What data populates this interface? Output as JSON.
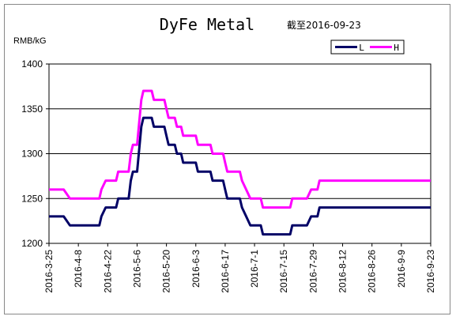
{
  "chart_data": {
    "type": "line",
    "title": "DyFe Metal",
    "subtitle": "截至2016-09-23",
    "ylabel": "RMB/kG",
    "xlabel": "",
    "ylim": [
      1200,
      1400
    ],
    "yticks": [
      1200,
      1250,
      1300,
      1350,
      1400
    ],
    "xlim": [
      "2016-03-25",
      "2016-09-23"
    ],
    "xtick_labels": [
      "2016-3-25",
      "2016-4-8",
      "2016-4-22",
      "2016-5-6",
      "2016-5-20",
      "2016-6-3",
      "2016-6-17",
      "2016-7-1",
      "2016-7-15",
      "2016-7-29",
      "2016-8-12",
      "2016-8-26",
      "2016-9-9",
      "2016-9-23"
    ],
    "grid": "horizontal",
    "legend_position": "top-right",
    "series": [
      {
        "name": "L",
        "color": "#000066",
        "points": [
          [
            "2016-03-25",
            1230
          ],
          [
            "2016-04-01",
            1230
          ],
          [
            "2016-04-04",
            1220
          ],
          [
            "2016-04-08",
            1220
          ],
          [
            "2016-04-18",
            1220
          ],
          [
            "2016-04-19",
            1230
          ],
          [
            "2016-04-21",
            1240
          ],
          [
            "2016-04-26",
            1240
          ],
          [
            "2016-04-27",
            1250
          ],
          [
            "2016-05-02",
            1250
          ],
          [
            "2016-05-03",
            1270
          ],
          [
            "2016-05-04",
            1280
          ],
          [
            "2016-05-06",
            1280
          ],
          [
            "2016-05-08",
            1330
          ],
          [
            "2016-05-09",
            1340
          ],
          [
            "2016-05-13",
            1340
          ],
          [
            "2016-05-14",
            1330
          ],
          [
            "2016-05-19",
            1330
          ],
          [
            "2016-05-20",
            1320
          ],
          [
            "2016-05-21",
            1310
          ],
          [
            "2016-05-24",
            1310
          ],
          [
            "2016-05-25",
            1300
          ],
          [
            "2016-05-27",
            1300
          ],
          [
            "2016-05-28",
            1290
          ],
          [
            "2016-06-03",
            1290
          ],
          [
            "2016-06-04",
            1280
          ],
          [
            "2016-06-10",
            1280
          ],
          [
            "2016-06-11",
            1270
          ],
          [
            "2016-06-16",
            1270
          ],
          [
            "2016-06-17",
            1260
          ],
          [
            "2016-06-18",
            1250
          ],
          [
            "2016-06-24",
            1250
          ],
          [
            "2016-06-25",
            1240
          ],
          [
            "2016-06-27",
            1230
          ],
          [
            "2016-06-29",
            1220
          ],
          [
            "2016-07-04",
            1220
          ],
          [
            "2016-07-05",
            1210
          ],
          [
            "2016-07-18",
            1210
          ],
          [
            "2016-07-19",
            1220
          ],
          [
            "2016-07-26",
            1220
          ],
          [
            "2016-07-28",
            1230
          ],
          [
            "2016-07-31",
            1230
          ],
          [
            "2016-08-01",
            1240
          ],
          [
            "2016-09-23",
            1240
          ]
        ]
      },
      {
        "name": "H",
        "color": "#ff00ff",
        "points": [
          [
            "2016-03-25",
            1260
          ],
          [
            "2016-04-01",
            1260
          ],
          [
            "2016-04-04",
            1250
          ],
          [
            "2016-04-08",
            1250
          ],
          [
            "2016-04-18",
            1250
          ],
          [
            "2016-04-19",
            1260
          ],
          [
            "2016-04-21",
            1270
          ],
          [
            "2016-04-26",
            1270
          ],
          [
            "2016-04-27",
            1280
          ],
          [
            "2016-05-02",
            1280
          ],
          [
            "2016-05-03",
            1300
          ],
          [
            "2016-05-04",
            1310
          ],
          [
            "2016-05-06",
            1310
          ],
          [
            "2016-05-08",
            1360
          ],
          [
            "2016-05-09",
            1370
          ],
          [
            "2016-05-13",
            1370
          ],
          [
            "2016-05-14",
            1360
          ],
          [
            "2016-05-19",
            1360
          ],
          [
            "2016-05-20",
            1350
          ],
          [
            "2016-05-21",
            1340
          ],
          [
            "2016-05-24",
            1340
          ],
          [
            "2016-05-25",
            1330
          ],
          [
            "2016-05-27",
            1330
          ],
          [
            "2016-05-28",
            1320
          ],
          [
            "2016-06-03",
            1320
          ],
          [
            "2016-06-04",
            1310
          ],
          [
            "2016-06-10",
            1310
          ],
          [
            "2016-06-11",
            1300
          ],
          [
            "2016-06-16",
            1300
          ],
          [
            "2016-06-17",
            1290
          ],
          [
            "2016-06-18",
            1280
          ],
          [
            "2016-06-24",
            1280
          ],
          [
            "2016-06-25",
            1270
          ],
          [
            "2016-06-27",
            1260
          ],
          [
            "2016-06-29",
            1250
          ],
          [
            "2016-07-04",
            1250
          ],
          [
            "2016-07-05",
            1240
          ],
          [
            "2016-07-18",
            1240
          ],
          [
            "2016-07-19",
            1250
          ],
          [
            "2016-07-26",
            1250
          ],
          [
            "2016-07-28",
            1260
          ],
          [
            "2016-07-31",
            1260
          ],
          [
            "2016-08-01",
            1270
          ],
          [
            "2016-09-23",
            1270
          ]
        ]
      }
    ]
  }
}
